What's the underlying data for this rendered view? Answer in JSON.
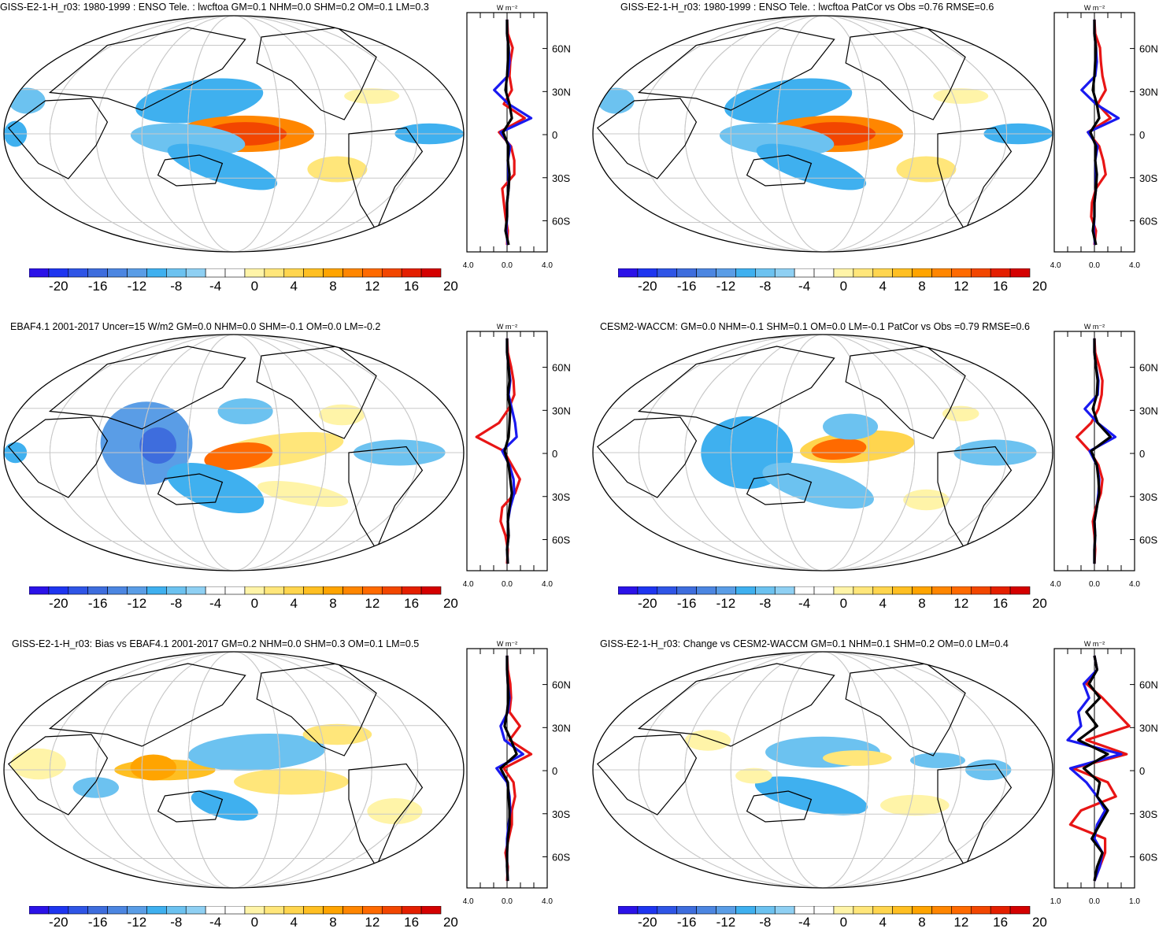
{
  "colors": {
    "palette": [
      "#2b12e8",
      "#1e35f0",
      "#2f55e6",
      "#3e6ddd",
      "#4c86e1",
      "#5a9de6",
      "#3fb0ef",
      "#6cc2f0",
      "#8fd0f3",
      "#ffffff",
      "#ffffff",
      "#fff4a8",
      "#ffe67a",
      "#ffd54e",
      "#ffbf22",
      "#ffa400",
      "#ff8600",
      "#ff6a00",
      "#f24600",
      "#e41f00",
      "#d40000"
    ],
    "profile_red": "#e81515",
    "profile_blue": "#1a1af0",
    "profile_black": "#000000"
  },
  "colorbar_labels": [
    "-20",
    "-16",
    "-12",
    "-8",
    "-4",
    "0",
    "4",
    "8",
    "12",
    "16",
    "20"
  ],
  "profile": {
    "unit": "W m⁻²",
    "lat_labels": [
      "60N",
      "30N",
      "0",
      "30S",
      "60S"
    ]
  },
  "panels": [
    {
      "id": "p1",
      "title": "GISS-E2-1-H_r03: 1980-1999 : ENSO Tele. : lwcftoa GM=0.1 NHM=0.0 SHM=0.2 OM=0.1 LM=0.3",
      "xticks": [
        "-4.0",
        "0.0",
        "4.0"
      ],
      "profile": {
        "black": [
          0,
          0,
          0.2,
          0.1,
          0,
          -0.2,
          0.3,
          0.6,
          -0.5,
          0.2,
          0.1,
          0.3,
          0.2,
          0,
          0,
          -0.2,
          0.2
        ],
        "blue": [
          0,
          0,
          0.2,
          0.3,
          0.1,
          -1.6,
          0.2,
          3.0,
          -0.8,
          0.4,
          0.1,
          0.2,
          0.2,
          0,
          0,
          -0.1,
          0.1
        ],
        "red": [
          0,
          0.1,
          0.7,
          0.4,
          0.3,
          0.6,
          -0.4,
          2.2,
          -1.0,
          0.5,
          0.9,
          0.9,
          -0.6,
          -0.4,
          -0.2,
          0.1,
          0
        ]
      }
    },
    {
      "id": "p2",
      "title": "GISS-E2-1-H_r03: 1980-1999 : ENSO Tele. : lwcftoa PatCor vs Obs =0.76 RMSE=0.6",
      "xticks": [
        "-4.0",
        "0.0",
        "4.0"
      ],
      "profile": {
        "black": [
          0,
          0,
          0.2,
          0.1,
          0,
          -0.2,
          0.3,
          0.6,
          -0.5,
          0.2,
          0.1,
          0.3,
          0.2,
          0,
          0,
          -0.2,
          0.2
        ],
        "blue": [
          0,
          0,
          0.2,
          0.3,
          0.1,
          -1.6,
          0.2,
          3.0,
          -0.8,
          0.4,
          0.1,
          0.2,
          0.2,
          0,
          0,
          -0.1,
          0.1
        ],
        "red": [
          0,
          0.1,
          0.7,
          0.8,
          1.0,
          1.4,
          0.4,
          2.0,
          -0.8,
          0.6,
          1.1,
          1.4,
          0.2,
          -0.3,
          -0.4,
          0.2,
          0
        ]
      }
    },
    {
      "id": "p3",
      "title": "EBAF4.1 2001-2017 Uncer=15 W/m2 GM=0.0 NHM=0.0 SHM=-0.1 OM=0.0 LM=-0.2",
      "xticks": [
        "-4.0",
        "0.0",
        "4.0"
      ],
      "profile": {
        "black": [
          0,
          0,
          0.2,
          0.3,
          0.1,
          0.4,
          0.3,
          0.2,
          -0.3,
          0.2,
          0.4,
          0.6,
          0.3,
          0.1,
          0.2,
          0,
          0.1
        ],
        "blue": [
          0,
          0,
          0.2,
          0.4,
          0.2,
          0.6,
          1.0,
          1.2,
          -0.6,
          0.3,
          0.8,
          0.9,
          0.4,
          0.1,
          0.2,
          0,
          0.1
        ],
        "red": [
          0,
          0.1,
          0.5,
          0.8,
          0.9,
          0.2,
          -1.0,
          -3.8,
          -0.4,
          0.6,
          1.6,
          1.0,
          -0.6,
          -0.8,
          -0.2,
          0.1,
          0
        ]
      }
    },
    {
      "id": "p4",
      "title": "CESM2-WACCM: GM=0.0 NHM=-0.1 SHM=0.1 OM=0.0 LM=-0.1 PatCor vs Obs =0.79 RMSE=0.6",
      "xticks": [
        "-4.0",
        "0.0",
        "4.0"
      ],
      "profile": {
        "black": [
          0,
          0,
          0.2,
          0.4,
          0.3,
          -0.2,
          0.4,
          2.0,
          -0.4,
          0.3,
          0.5,
          0.6,
          0.3,
          0,
          0.1,
          0,
          0
        ],
        "blue": [
          0,
          0,
          0.2,
          0.5,
          0.4,
          -1.2,
          0.4,
          2.6,
          -0.6,
          0.3,
          0.6,
          0.5,
          0.3,
          0,
          0.1,
          0,
          0
        ],
        "red": [
          0,
          0.1,
          0.6,
          1.0,
          0.9,
          0.5,
          -0.4,
          -2.2,
          -0.6,
          0.5,
          1.0,
          0.8,
          0.2,
          -0.2,
          0,
          0.1,
          0
        ]
      }
    },
    {
      "id": "p5",
      "title": "GISS-E2-1-H_r03: Bias vs EBAF4.1 2001-2017 GM=0.2 NHM=0.0 SHM=0.3 OM=0.1 LM=0.5",
      "xticks": [
        "-4.0",
        "0.0",
        "4.0"
      ],
      "profile": {
        "black": [
          0,
          0,
          0.1,
          0.2,
          0,
          -0.3,
          0.5,
          1.2,
          -0.8,
          0.1,
          0.2,
          0.3,
          0.3,
          0.1,
          0,
          0,
          0.1
        ],
        "blue": [
          0,
          0,
          0.1,
          0.3,
          0.1,
          -0.8,
          -0.3,
          2.0,
          -1.3,
          0,
          0.3,
          0.4,
          0.2,
          0,
          0,
          0,
          0.1
        ],
        "red": [
          0,
          0.1,
          0.4,
          0.5,
          0.3,
          1.6,
          0.3,
          3.0,
          -0.4,
          0.8,
          1.0,
          0.6,
          0.6,
          0.2,
          -0.2,
          0.1,
          0
        ]
      }
    },
    {
      "id": "p6",
      "title": "GISS-E2-1-H_r03: Change vs CESM2-WACCM GM=0.1 NHM=0.1 SHM=0.2 OM=0.0 LM=0.4",
      "xticks": [
        "-1.0",
        "0.0",
        "1.0"
      ],
      "profile": {
        "black": [
          0,
          0.1,
          -0.2,
          0.2,
          -0.3,
          0.1,
          -0.6,
          0.5,
          -0.4,
          0.2,
          0.1,
          0.5,
          0.2,
          -0.1,
          0.3,
          0.1,
          0
        ],
        "blue": [
          0,
          0.1,
          -0.4,
          -0.2,
          -0.6,
          -0.5,
          -1.0,
          1.0,
          -0.9,
          -0.3,
          0.1,
          0.4,
          0.1,
          0,
          0.3,
          0.2,
          0
        ],
        "red": [
          0,
          0.1,
          -0.3,
          0.3,
          0.8,
          1.3,
          -0.3,
          1.2,
          -0.8,
          0.5,
          0.8,
          -0.5,
          -0.9,
          0.4,
          0.4,
          0.2,
          0
        ]
      }
    }
  ]
}
